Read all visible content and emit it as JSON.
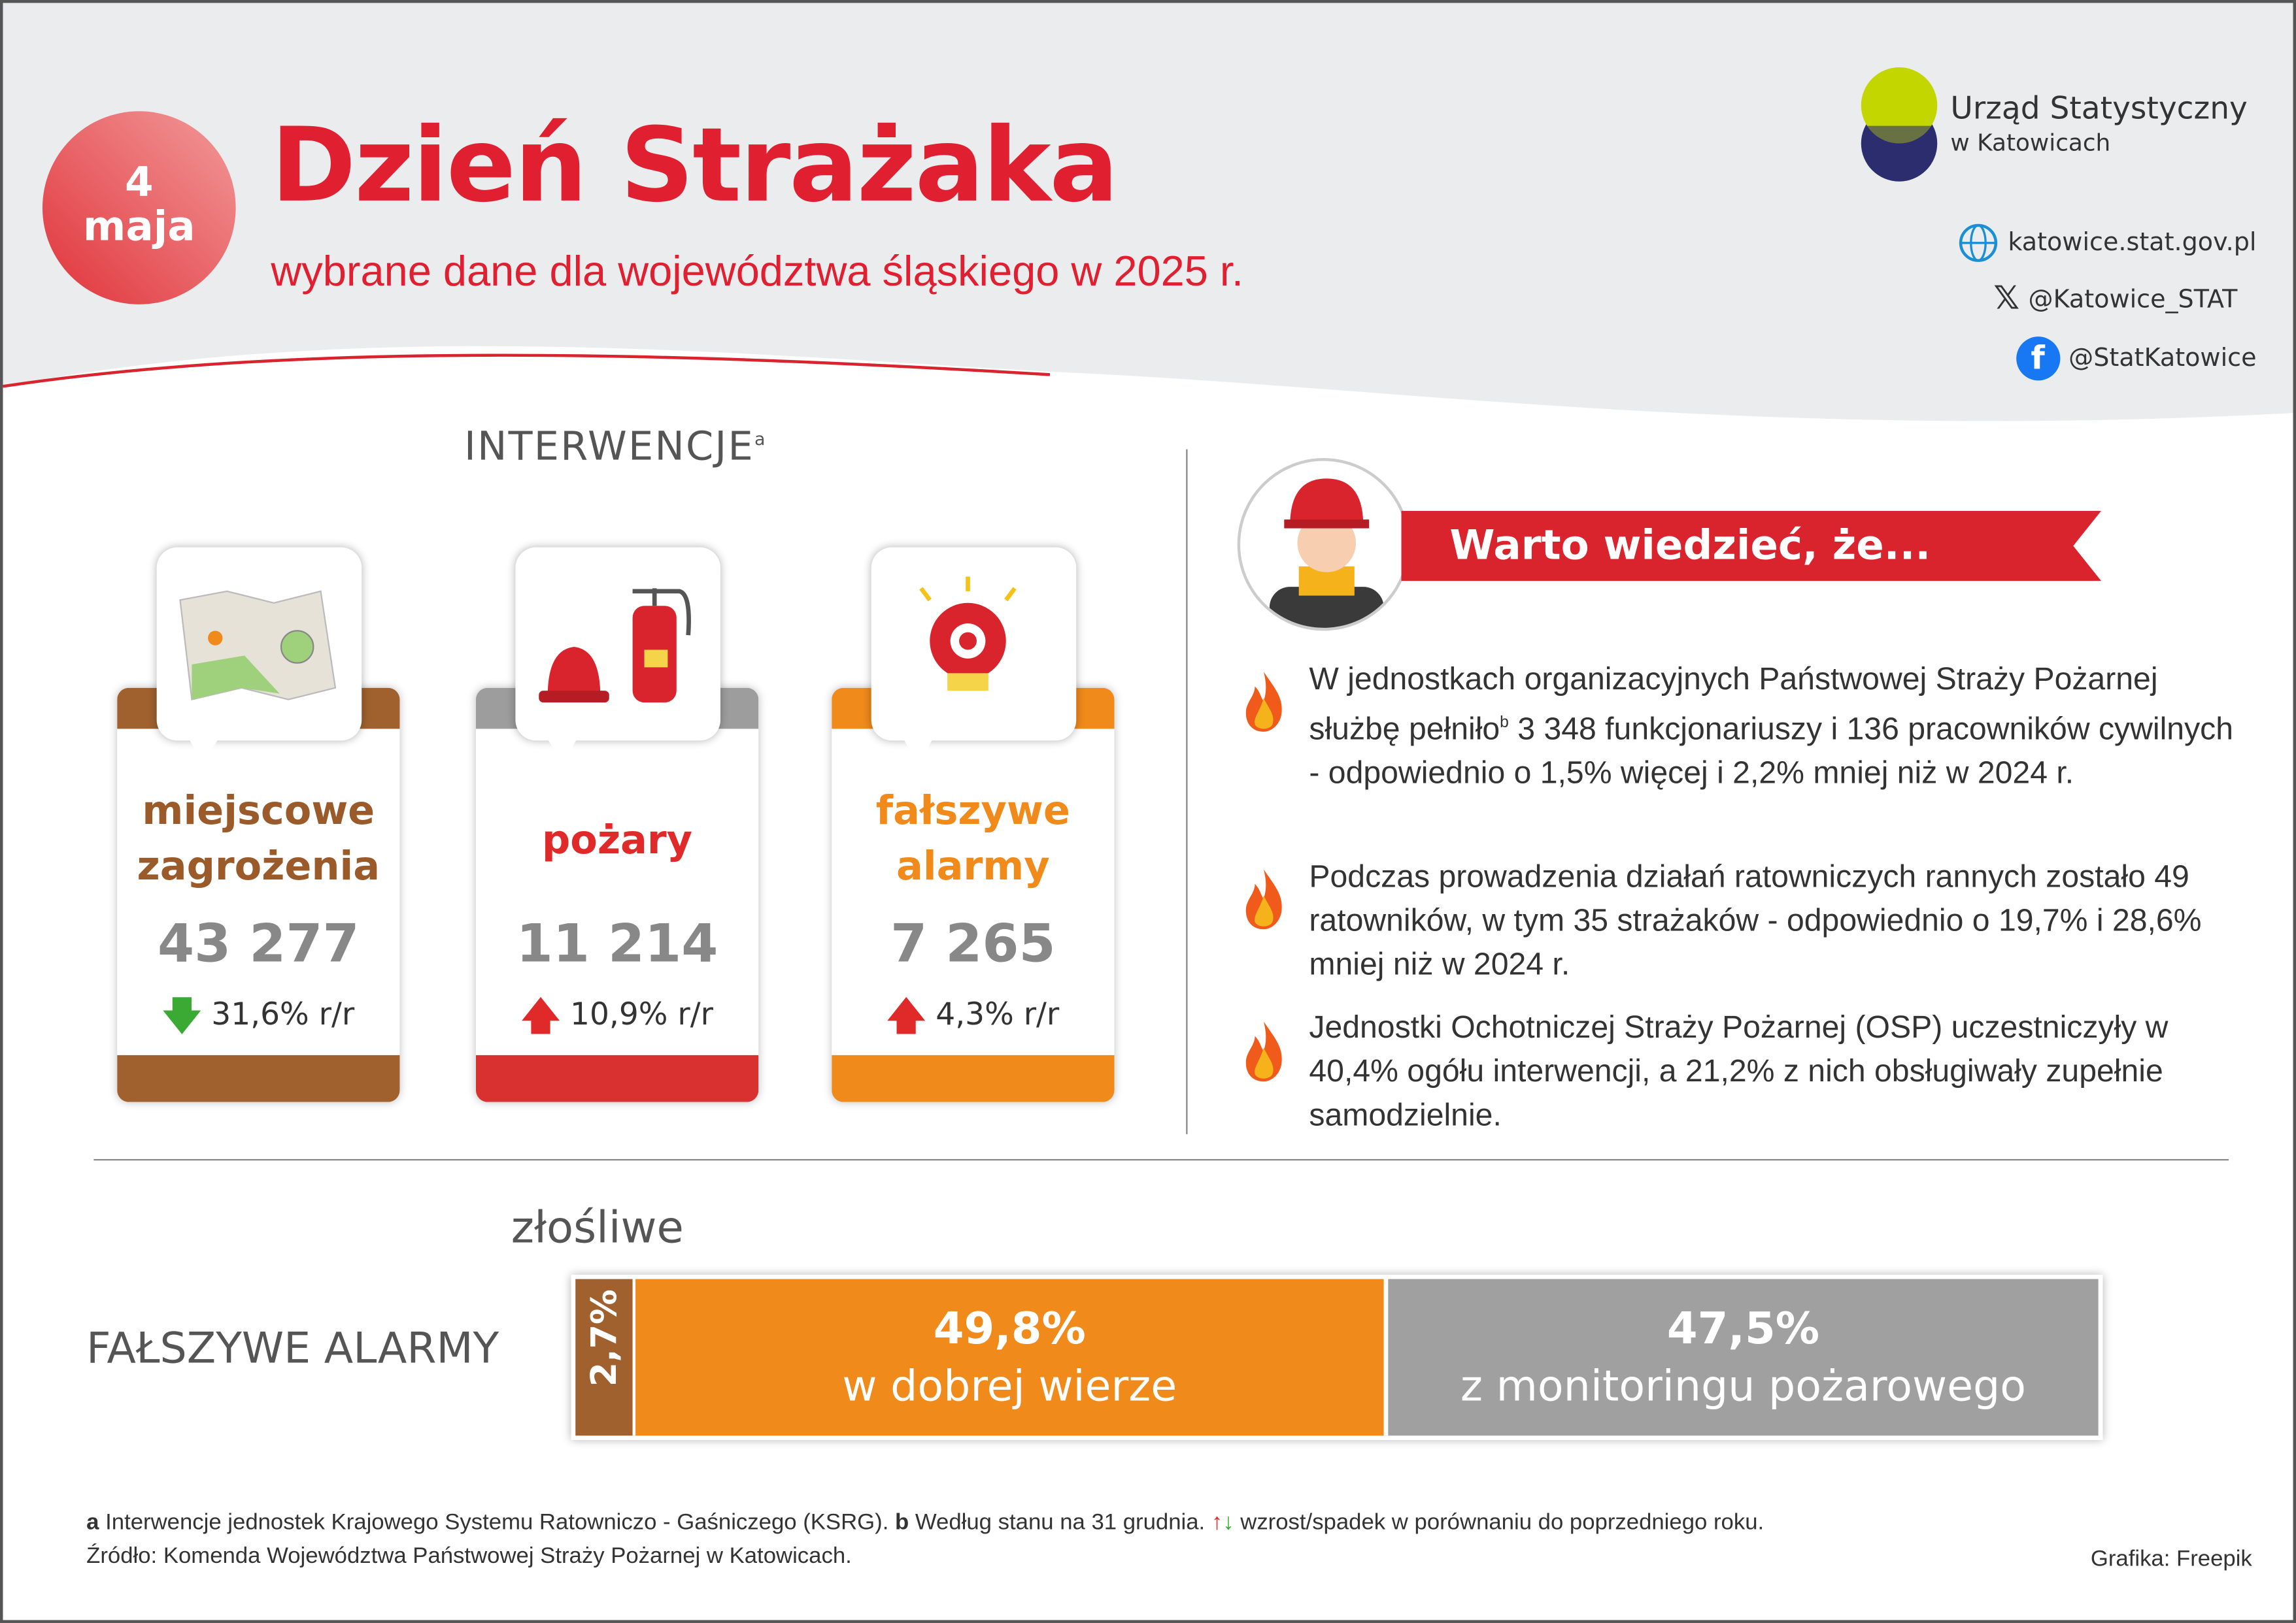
{
  "header": {
    "date_day": "4",
    "date_month": "maja",
    "title": "Dzień Strażaka",
    "subtitle": "wybrane dane dla województwa śląskiego w 2025 r."
  },
  "logo": {
    "name": "Urząd Statystyczny",
    "city": "w Katowicach",
    "colors": [
      "#c4d600",
      "#2b2d6e"
    ]
  },
  "links": [
    {
      "icon": "globe-icon",
      "text": "katowice.stat.gov.pl"
    },
    {
      "icon": "x-icon",
      "text": "@Katowice_STAT"
    },
    {
      "icon": "facebook-icon",
      "text": "@StatKatowice"
    }
  ],
  "interventions": {
    "heading": "INTERWENCJE",
    "heading_note": "a",
    "cards": [
      {
        "icon": "map-icon",
        "title_1": "miejscowe",
        "title_2": "zagrożenia",
        "value": "43 277",
        "change": "31,6% r/r",
        "direction": "down",
        "color": "#a0612f"
      },
      {
        "icon": "fire-extinguisher-helmet-icon",
        "title_1": "pożary",
        "title_2": "",
        "value": "11 214",
        "change": "10,9% r/r",
        "direction": "up",
        "color": "#d93030"
      },
      {
        "icon": "alarm-bell-icon",
        "title_1": "fałszywe",
        "title_2": "alarmy",
        "value": "7 265",
        "change": "4,3% r/r",
        "direction": "up",
        "color": "#f08a1a"
      }
    ]
  },
  "facts": {
    "heading": "Warto wiedzieć, że...",
    "items": [
      {
        "pre": "W jednostkach organizacyjnych Państwowej Straży Pożarnej służbę pełniło",
        "note": "b",
        "post": " 3 348 funkcjonariuszy i 136 pracowników cywilnych - odpowiednio o 1,5% więcej i 2,2% mniej niż w 2024 r."
      },
      {
        "pre": "Podczas prowadzenia działań ratowniczych rannych zostało 49 ratowników, w tym 35 strażaków - odpowiednio o 19,7% i 28,6% mniej niż w 2024 r.",
        "note": "",
        "post": ""
      },
      {
        "pre": "Jednostki Ochotniczej Straży Pożarnej (OSP) uczestniczyły w 40,4% ogółu interwencji, a 21,2% z nich obsługiwały zupełnie samodzielnie.",
        "note": "",
        "post": ""
      }
    ]
  },
  "false_alarms": {
    "label": "FAŁSZYWE ALARMY",
    "top_label": "złośliwe",
    "segments": [
      {
        "value": "2,7%",
        "label": "",
        "share": 2.7,
        "color": "#a0612f"
      },
      {
        "value": "49,8%",
        "label": "w dobrej wierze",
        "share": 49.8,
        "color": "#ef8a1b"
      },
      {
        "value": "47,5%",
        "label": "z monitoringu pożarowego",
        "share": 47.5,
        "color": "#a0a0a0"
      }
    ]
  },
  "footer": {
    "note_a_key": "a",
    "note_a": " Interwencje jednostek Krajowego Systemu Ratowniczo - Gaśniczego (KSRG). ",
    "note_b_key": "b",
    "note_b": " Według stanu na 31 grudnia.",
    "legend": "wzrost/spadek w porównaniu do poprzedniego roku.",
    "source": "Źródło: Komenda Województwa Państwowej Straży Pożarnej w Katowicach.",
    "credit": "Grafika: Freepik"
  }
}
